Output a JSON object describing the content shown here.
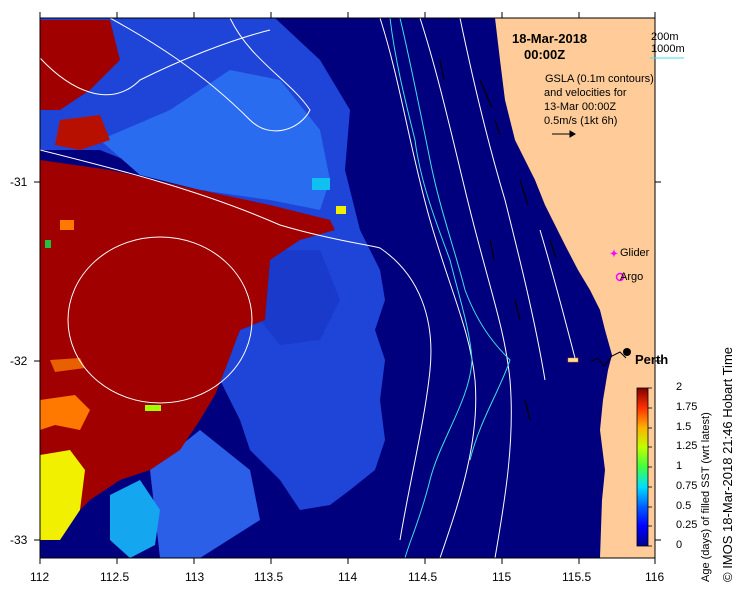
{
  "map": {
    "date": "18-Mar-2018",
    "time": "00:00Z",
    "contour_legend": {
      "line1": "200m",
      "line2": "1000m",
      "line2_color": "#40e0e0"
    },
    "gsla_note": {
      "line1": "GSLA (0.1m contours)",
      "line2": "and velocities for",
      "line3": "13-Mar 00:00Z",
      "line4": "0.5m/s (1kt 6h)"
    },
    "markers": {
      "glider_label": "Glider",
      "argo_label": "Argo",
      "city_label": "Perth",
      "marker_color": "#ff00ff"
    },
    "colors": {
      "land": "#ffcc99",
      "ocean": "#00007f",
      "old_sst": "#a00000",
      "contour": "#ffffff",
      "isobath_1000": "#40e0e0"
    },
    "x_axis": {
      "ticks": [
        "112",
        "112.5",
        "113",
        "113.5",
        "114",
        "114.5",
        "115",
        "115.5",
        "116"
      ]
    },
    "y_axis": {
      "ticks": [
        "-31",
        "-32",
        "-33"
      ]
    },
    "colorbar": {
      "ticks": [
        "2",
        "1.75",
        "1.5",
        "1.25",
        "1",
        "0.75",
        "0.5",
        "0.25",
        "0"
      ],
      "title": "Age (days) of filled SST (wrt latest)",
      "colormap": "jet",
      "range": [
        0,
        2
      ]
    },
    "credit": "© IMOS 18-Mar-2018 21:46 Hobart Time"
  }
}
